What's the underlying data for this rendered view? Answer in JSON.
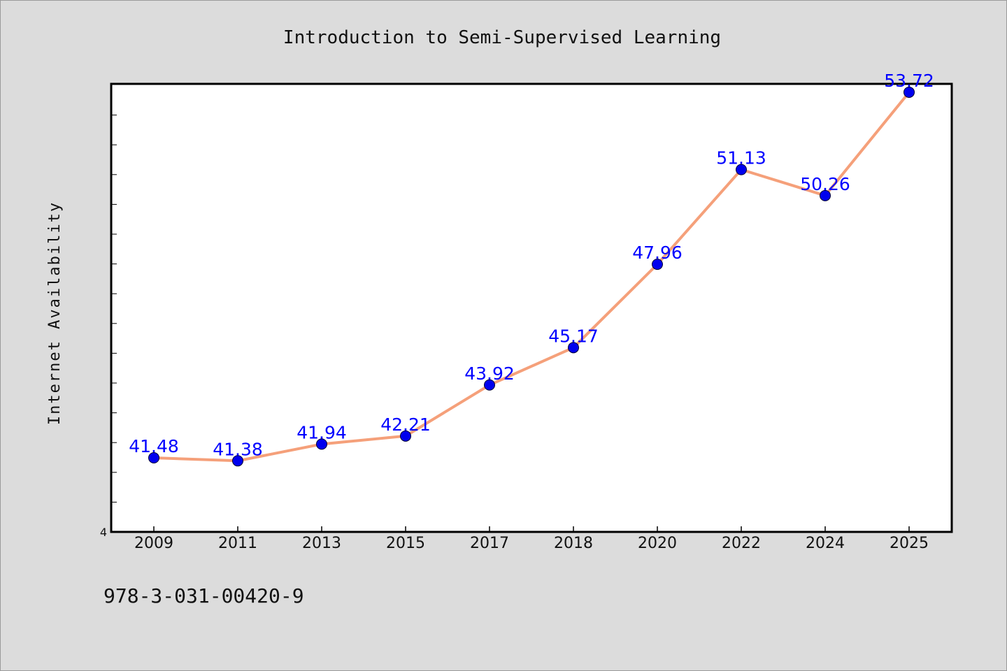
{
  "chart_data": {
    "type": "line",
    "title": "Introduction to Semi-Supervised Learning",
    "xlabel": "",
    "ylabel": "Internet Availability",
    "categories": [
      "2009",
      "2011",
      "2013",
      "2015",
      "2017",
      "2018",
      "2020",
      "2022",
      "2024",
      "2025"
    ],
    "series": [
      {
        "values": [
          41.48,
          41.38,
          41.94,
          42.21,
          43.92,
          45.17,
          47.96,
          51.13,
          50.26,
          53.72
        ],
        "data_labels": [
          "41.48",
          "41.38",
          "41.94",
          "42.21",
          "43.92",
          "45.17",
          "47.96",
          "51.13",
          "50.26",
          "53.72"
        ],
        "line_color": "#f5a07a",
        "marker_color": "#0000ee",
        "label_color": "#0000ff"
      }
    ],
    "ylim": [
      39.0,
      54.0
    ],
    "y_tick_labels": [
      {
        "value": 39.0,
        "label": "4"
      }
    ],
    "grid": false,
    "legend": "none"
  },
  "footer": {
    "isbn": "978-3-031-00420-9"
  },
  "colors": {
    "background": "#dcdcdc",
    "plot_background": "#ffffff"
  }
}
